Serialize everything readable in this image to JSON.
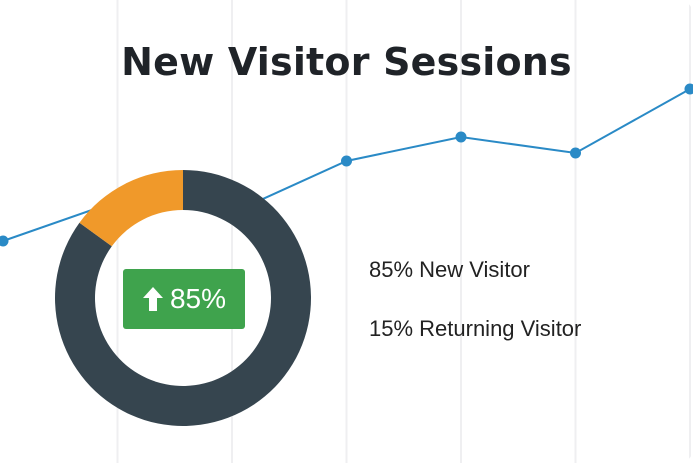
{
  "chart_data": [
    {
      "type": "line",
      "title": "New Visitor Sessions",
      "x": [
        0,
        1,
        2,
        3,
        4,
        5,
        6
      ],
      "y": [
        56,
        66,
        63,
        76,
        82,
        78,
        94
      ],
      "ylim": [
        0,
        100
      ],
      "grid": "vertical",
      "color": "#2a8ac6"
    },
    {
      "type": "pie",
      "style": "donut",
      "slices": [
        {
          "label": "New Visitor",
          "value": 85,
          "color": "#36454f"
        },
        {
          "label": "Returning Visitor",
          "value": 15,
          "color": "#f0992a"
        }
      ]
    }
  ],
  "badge": {
    "value": "85%",
    "icon": "arrow-up-icon",
    "color": "#3fa34d"
  },
  "legend": {
    "new": "85% New Visitor",
    "returning": "15% Returning Visitor"
  }
}
